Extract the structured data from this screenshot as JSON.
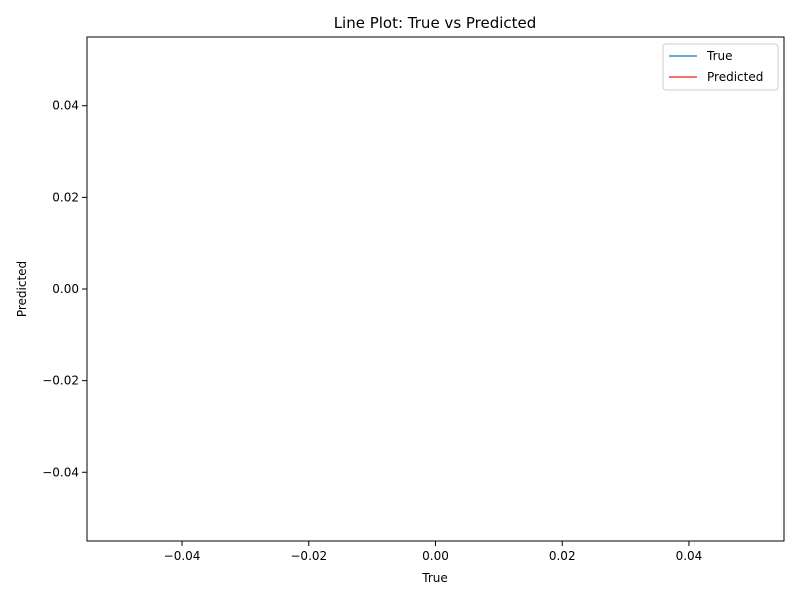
{
  "chart_data": {
    "type": "line",
    "title": "Line Plot: True vs Predicted",
    "xlabel": "True",
    "ylabel": "Predicted",
    "xlim": [
      -0.055,
      0.055
    ],
    "ylim": [
      -0.055,
      0.055
    ],
    "x_ticks": [
      -0.04,
      -0.02,
      0.0,
      0.02,
      0.04
    ],
    "y_ticks": [
      -0.04,
      -0.02,
      0.0,
      0.02,
      0.04
    ],
    "x_tick_labels": [
      "−0.04",
      "−0.02",
      "0.00",
      "0.02",
      "0.04"
    ],
    "y_tick_labels": [
      "−0.04",
      "−0.02",
      "0.00",
      "0.02",
      "0.04"
    ],
    "grid": false,
    "legend_position": "top-right",
    "series": [
      {
        "name": "True",
        "color": "#3a8fc7",
        "x": [],
        "y": []
      },
      {
        "name": "Predicted",
        "color": "#e8483c",
        "x": [],
        "y": []
      }
    ]
  }
}
